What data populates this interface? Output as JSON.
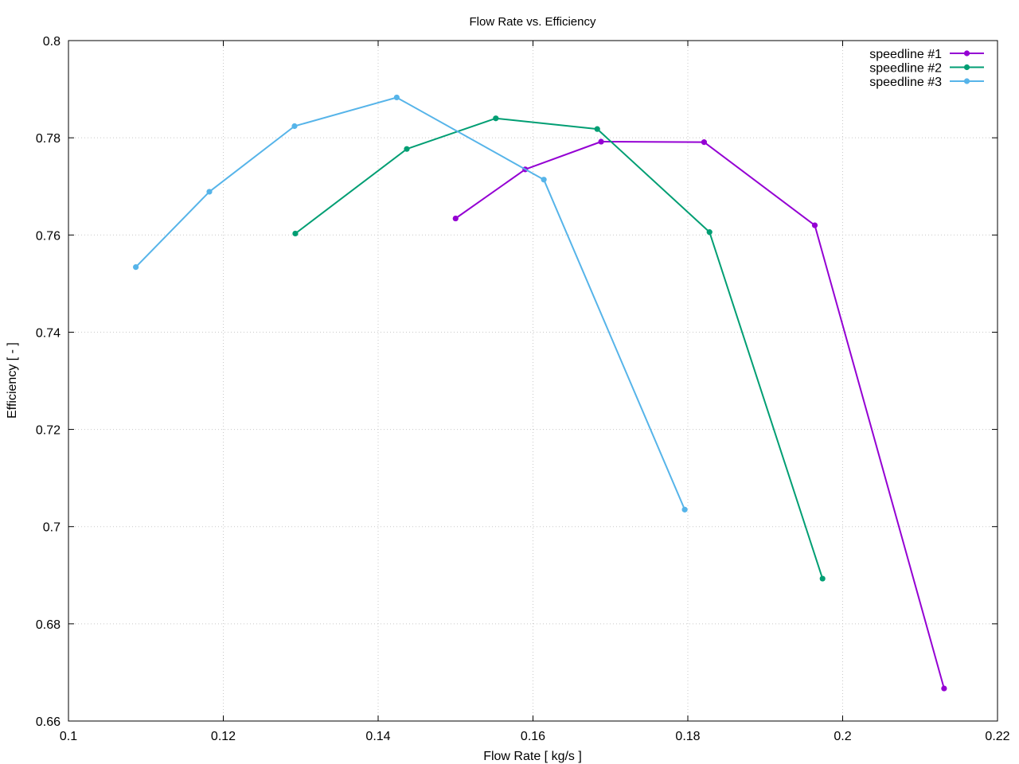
{
  "chart_data": {
    "type": "line",
    "title": "Flow Rate vs. Efficiency",
    "xlabel": "Flow Rate [ kg/s ]",
    "ylabel": "Efficiency [ - ]",
    "xlim": [
      0.1,
      0.22
    ],
    "ylim": [
      0.66,
      0.8
    ],
    "xticks": [
      0.1,
      0.12,
      0.14,
      0.16,
      0.18,
      0.2,
      0.22
    ],
    "yticks": [
      0.66,
      0.68,
      0.7,
      0.72,
      0.74,
      0.76,
      0.78,
      0.8
    ],
    "xtick_labels": [
      "0.1",
      "0.12",
      "0.14",
      "0.16",
      "0.18",
      "0.2",
      "0.22"
    ],
    "ytick_labels": [
      "0.66",
      "0.68",
      "0.7",
      "0.72",
      "0.74",
      "0.76",
      "0.78",
      "0.8"
    ],
    "grid": true,
    "legend_position": "top-right",
    "series": [
      {
        "name": "speedline #1",
        "color": "#9400d3",
        "x": [
          0.15,
          0.159,
          0.1688,
          0.1821,
          0.1964,
          0.2131
        ],
        "y": [
          0.7634,
          0.7735,
          0.7792,
          0.7791,
          0.762,
          0.6667
        ]
      },
      {
        "name": "speedline #2",
        "color": "#009e73",
        "x": [
          0.1293,
          0.1437,
          0.1552,
          0.1683,
          0.1828,
          0.1974
        ],
        "y": [
          0.7603,
          0.7777,
          0.784,
          0.7818,
          0.7606,
          0.6893
        ]
      },
      {
        "name": "speedline #3",
        "color": "#56b4e9",
        "x": [
          0.1087,
          0.1182,
          0.1292,
          0.1424,
          0.1614,
          0.1796
        ],
        "y": [
          0.7534,
          0.7689,
          0.7824,
          0.7883,
          0.7714,
          0.7035
        ]
      }
    ]
  }
}
